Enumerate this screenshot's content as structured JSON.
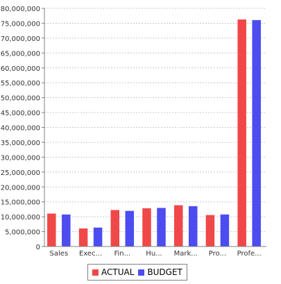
{
  "chart_data": {
    "type": "bar",
    "categories": [
      "Sales",
      "Exec...",
      "Fin...",
      "Hu...",
      "Mark...",
      "Pro...",
      "Profe..."
    ],
    "series": [
      {
        "name": "ACTUAL",
        "color": "#f04848",
        "values": [
          11000000,
          6000000,
          12200000,
          12800000,
          13800000,
          10500000,
          76200000
        ]
      },
      {
        "name": "BUDGET",
        "color": "#4c4cf0",
        "values": [
          10700000,
          6300000,
          11900000,
          12900000,
          13500000,
          10700000,
          76000000
        ]
      }
    ],
    "ylim": [
      0,
      80000000
    ],
    "ytick_step": 5000000,
    "yticks": [
      "0",
      "5,000,000",
      "10,000,000",
      "15,000,000",
      "20,000,000",
      "25,000,000",
      "30,000,000",
      "35,000,000",
      "40,000,000",
      "45,000,000",
      "50,000,000",
      "55,000,000",
      "60,000,000",
      "65,000,000",
      "70,000,000",
      "75,000,000",
      "80,000,000"
    ],
    "grid": true,
    "legend_position": "bottom"
  }
}
